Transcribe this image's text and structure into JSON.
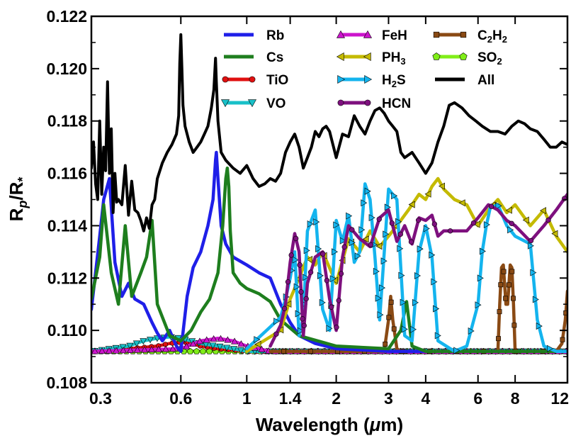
{
  "chart_data": {
    "type": "line",
    "title": "",
    "xlabel": "Wavelength (μm)",
    "xlabel_parts": [
      "Wavelength (",
      "μ",
      "m)"
    ],
    "ylabel": "Rp/R*",
    "ylabel_parts": [
      "R",
      "p",
      "/R",
      "*"
    ],
    "xscale": "log",
    "xlim": [
      0.3,
      12
    ],
    "ylim": [
      0.108,
      0.122
    ],
    "x_ticks": [
      0.3,
      0.6,
      1,
      1.4,
      2,
      3,
      4,
      6,
      8,
      12
    ],
    "x_tick_labels": [
      "0.3",
      "0.6",
      "1",
      "1.4",
      "2",
      "3",
      "4",
      "6",
      "8",
      "12"
    ],
    "y_ticks": [
      0.108,
      0.11,
      0.112,
      0.114,
      0.116,
      0.118,
      0.12,
      0.122
    ],
    "y_tick_labels": [
      "0.108",
      "0.110",
      "0.112",
      "0.114",
      "0.116",
      "0.118",
      "0.120",
      "0.122"
    ],
    "grid": false,
    "legend_position": "top-right",
    "baseline": 0.1092,
    "series": [
      {
        "name": "Rb",
        "label_parts": [
          "Rb"
        ],
        "color": "#1f1fe8",
        "marker": "none",
        "x": [
          0.3,
          0.32,
          0.33,
          0.345,
          0.36,
          0.38,
          0.4,
          0.42,
          0.45,
          0.48,
          0.5,
          0.52,
          0.55,
          0.58,
          0.6,
          0.63,
          0.66,
          0.7,
          0.74,
          0.77,
          0.785,
          0.79,
          0.8,
          0.82,
          0.85,
          0.9,
          1.0,
          1.1,
          1.2,
          1.3,
          1.4,
          1.5,
          1.7,
          2.0,
          3.0,
          12
        ],
        "y": [
          0.1108,
          0.1136,
          0.115,
          0.1158,
          0.1126,
          0.1113,
          0.1118,
          0.1112,
          0.111,
          0.1103,
          0.1099,
          0.1096,
          0.11,
          0.1094,
          0.1092,
          0.1113,
          0.1124,
          0.113,
          0.114,
          0.115,
          0.1165,
          0.1168,
          0.1158,
          0.114,
          0.1133,
          0.1128,
          0.1125,
          0.1122,
          0.112,
          0.111,
          0.1103,
          0.1098,
          0.1095,
          0.1093,
          0.1092,
          0.1092
        ]
      },
      {
        "name": "Cs",
        "label_parts": [
          "Cs"
        ],
        "color": "#1e7e1e",
        "marker": "none",
        "x": [
          0.3,
          0.32,
          0.33,
          0.35,
          0.37,
          0.39,
          0.41,
          0.44,
          0.46,
          0.48,
          0.5,
          0.55,
          0.6,
          0.65,
          0.7,
          0.75,
          0.8,
          0.83,
          0.85,
          0.86,
          0.87,
          0.88,
          0.9,
          0.95,
          1.0,
          1.1,
          1.2,
          1.3,
          1.5,
          2.0,
          3.0,
          3.3,
          3.45,
          3.6,
          4.0,
          12
        ],
        "y": [
          0.1112,
          0.1128,
          0.1148,
          0.1122,
          0.111,
          0.114,
          0.1113,
          0.1122,
          0.1128,
          0.1142,
          0.111,
          0.1098,
          0.1096,
          0.11,
          0.1107,
          0.1112,
          0.1122,
          0.114,
          0.1158,
          0.1162,
          0.1155,
          0.1138,
          0.1122,
          0.1118,
          0.1116,
          0.1114,
          0.1111,
          0.1104,
          0.1098,
          0.1094,
          0.1093,
          0.11,
          0.1111,
          0.1094,
          0.1092,
          0.1092
        ]
      },
      {
        "name": "TiO",
        "label_parts": [
          "TiO"
        ],
        "color": "#e01010",
        "marker": "circle",
        "x": [
          0.3,
          0.4,
          0.45,
          0.5,
          0.55,
          0.6,
          0.65,
          0.7,
          0.8,
          1.0,
          12
        ],
        "y": [
          0.1092,
          0.1093,
          0.10935,
          0.1094,
          0.1095,
          0.10955,
          0.1095,
          0.1094,
          0.1093,
          0.1092,
          0.1092
        ]
      },
      {
        "name": "VO",
        "label_parts": [
          "VO"
        ],
        "color": "#18c0c8",
        "marker": "triangle-down",
        "x": [
          0.3,
          0.4,
          0.45,
          0.5,
          0.55,
          0.6,
          0.65,
          0.7,
          0.8,
          0.9,
          1.0,
          12
        ],
        "y": [
          0.1092,
          0.1094,
          0.1096,
          0.1097,
          0.10975,
          0.1097,
          0.1096,
          0.1095,
          0.1094,
          0.1093,
          0.1092,
          0.1092
        ]
      },
      {
        "name": "FeH",
        "label_parts": [
          "FeH"
        ],
        "color": "#cc14cc",
        "marker": "triangle-up",
        "x": [
          0.3,
          0.6,
          0.7,
          0.8,
          0.9,
          1.0,
          1.1,
          1.2,
          12
        ],
        "y": [
          0.1092,
          0.1093,
          0.1096,
          0.1097,
          0.1096,
          0.1094,
          0.1093,
          0.1092,
          0.1092
        ]
      },
      {
        "name": "PH3",
        "label_parts": [
          "PH",
          "3"
        ],
        "color": "#c4ba00",
        "marker": "triangle-left",
        "x": [
          1.0,
          1.3,
          1.4,
          1.5,
          1.6,
          1.7,
          1.8,
          2.0,
          2.2,
          2.4,
          2.6,
          2.8,
          3.0,
          3.2,
          3.5,
          3.8,
          4.0,
          4.2,
          4.4,
          4.6,
          5.0,
          5.5,
          6.0,
          6.5,
          7.0,
          7.5,
          8.0,
          9.0,
          10.0,
          11.0,
          12.0
        ],
        "y": [
          0.1092,
          0.11,
          0.1112,
          0.112,
          0.1128,
          0.1125,
          0.113,
          0.1118,
          0.1135,
          0.113,
          0.1138,
          0.1132,
          0.1136,
          0.114,
          0.1146,
          0.1152,
          0.115,
          0.1155,
          0.1158,
          0.1154,
          0.115,
          0.1148,
          0.114,
          0.1146,
          0.115,
          0.1145,
          0.1148,
          0.114,
          0.1146,
          0.1136,
          0.113
        ]
      },
      {
        "name": "H2S",
        "label_parts": [
          "H",
          "2",
          "S"
        ],
        "color": "#14b4ee",
        "marker": "triangle-right",
        "x": [
          1.0,
          1.3,
          1.35,
          1.4,
          1.45,
          1.5,
          1.55,
          1.6,
          1.7,
          1.8,
          1.9,
          2.0,
          2.1,
          2.2,
          2.3,
          2.4,
          2.5,
          2.6,
          2.7,
          2.8,
          3.0,
          3.2,
          3.4,
          3.6,
          3.8,
          4.0,
          4.2,
          4.4,
          5.0,
          5.5,
          6.0,
          6.2,
          6.4,
          6.6,
          7.0,
          7.5,
          8.0,
          9.0,
          9.5,
          10.0,
          10.5,
          11.0,
          12
        ],
        "y": [
          0.1093,
          0.1105,
          0.1112,
          0.112,
          0.113,
          0.1098,
          0.1105,
          0.1138,
          0.1146,
          0.1108,
          0.11,
          0.1142,
          0.1134,
          0.1144,
          0.1126,
          0.113,
          0.1156,
          0.115,
          0.1128,
          0.1104,
          0.1154,
          0.115,
          0.1098,
          0.1096,
          0.113,
          0.114,
          0.1128,
          0.1096,
          0.1092,
          0.1094,
          0.111,
          0.113,
          0.114,
          0.1147,
          0.1148,
          0.114,
          0.1136,
          0.1133,
          0.1104,
          0.1094,
          0.1093,
          0.1092,
          0.1092
        ]
      },
      {
        "name": "HCN",
        "label_parts": [
          "HCN"
        ],
        "color": "#7e107e",
        "marker": "circle",
        "x": [
          1.2,
          1.3,
          1.35,
          1.4,
          1.45,
          1.5,
          1.55,
          1.6,
          1.7,
          1.8,
          1.9,
          2.0,
          2.1,
          2.2,
          2.4,
          2.6,
          2.8,
          3.0,
          3.2,
          3.4,
          3.6,
          3.8,
          4.0,
          4.2,
          4.4,
          4.6,
          5.0,
          5.5,
          6.0,
          6.5,
          7.0,
          7.5,
          8.0,
          9.0,
          10.0,
          11.0,
          12
        ],
        "y": [
          0.1094,
          0.1102,
          0.111,
          0.1126,
          0.1137,
          0.113,
          0.1098,
          0.1118,
          0.1128,
          0.113,
          0.1112,
          0.11,
          0.1128,
          0.114,
          0.1135,
          0.1132,
          0.1143,
          0.1146,
          0.1134,
          0.114,
          0.1133,
          0.1143,
          0.1142,
          0.1144,
          0.1136,
          0.1138,
          0.1138,
          0.1138,
          0.1143,
          0.1148,
          0.1146,
          0.1142,
          0.114,
          0.1134,
          0.114,
          0.1146,
          0.1152
        ]
      },
      {
        "name": "C2H2",
        "label_parts": [
          "C",
          "2",
          "H",
          "2"
        ],
        "color": "#8a4a14",
        "marker": "square",
        "x": [
          1.2,
          2.9,
          3.0,
          3.05,
          3.1,
          3.2,
          3.3,
          7.0,
          7.1,
          7.2,
          7.3,
          7.45,
          7.55,
          7.7,
          7.8,
          7.9,
          8.0,
          11.0,
          11.5,
          11.8,
          12
        ],
        "y": [
          0.1092,
          0.1092,
          0.1104,
          0.1113,
          0.1104,
          0.1093,
          0.1092,
          0.1092,
          0.111,
          0.1124,
          0.1125,
          0.111,
          0.111,
          0.1125,
          0.1124,
          0.111,
          0.1092,
          0.1092,
          0.1095,
          0.1104,
          0.1115
        ]
      },
      {
        "name": "SO2",
        "label_parts": [
          "SO",
          "2"
        ],
        "color": "#80ee18",
        "marker": "pentagon",
        "x": [
          0.3,
          12
        ],
        "y": [
          0.1092,
          0.1092
        ]
      },
      {
        "name": "All",
        "label_parts": [
          "All"
        ],
        "color": "#000000",
        "marker": "none",
        "x": [
          0.3,
          0.305,
          0.31,
          0.315,
          0.32,
          0.325,
          0.33,
          0.335,
          0.34,
          0.345,
          0.35,
          0.355,
          0.36,
          0.365,
          0.37,
          0.38,
          0.39,
          0.4,
          0.41,
          0.42,
          0.43,
          0.44,
          0.45,
          0.46,
          0.47,
          0.48,
          0.49,
          0.5,
          0.52,
          0.54,
          0.56,
          0.58,
          0.59,
          0.595,
          0.6,
          0.605,
          0.61,
          0.62,
          0.64,
          0.66,
          0.68,
          0.7,
          0.72,
          0.74,
          0.76,
          0.775,
          0.785,
          0.79,
          0.8,
          0.82,
          0.85,
          0.9,
          0.95,
          1.0,
          1.05,
          1.1,
          1.15,
          1.2,
          1.25,
          1.3,
          1.35,
          1.4,
          1.45,
          1.5,
          1.55,
          1.6,
          1.65,
          1.7,
          1.75,
          1.8,
          1.85,
          1.9,
          2.0,
          2.1,
          2.2,
          2.3,
          2.4,
          2.5,
          2.6,
          2.7,
          2.8,
          2.9,
          3.0,
          3.1,
          3.2,
          3.3,
          3.4,
          3.6,
          3.8,
          4.0,
          4.2,
          4.4,
          4.6,
          4.8,
          5.0,
          5.3,
          5.6,
          5.9,
          6.2,
          6.6,
          7.0,
          7.4,
          7.8,
          8.2,
          8.6,
          9.0,
          9.5,
          10.0,
          10.5,
          11.0,
          11.5,
          12.0
        ],
        "y": [
          0.1162,
          0.1172,
          0.1156,
          0.115,
          0.118,
          0.1152,
          0.117,
          0.1161,
          0.1195,
          0.116,
          0.1177,
          0.1145,
          0.116,
          0.1149,
          0.115,
          0.1148,
          0.1163,
          0.1144,
          0.1157,
          0.1146,
          0.1145,
          0.1142,
          0.1138,
          0.1143,
          0.1139,
          0.1148,
          0.115,
          0.1158,
          0.1164,
          0.1168,
          0.1171,
          0.1175,
          0.1182,
          0.1202,
          0.1213,
          0.12,
          0.1186,
          0.1178,
          0.1172,
          0.1168,
          0.117,
          0.1172,
          0.1175,
          0.1178,
          0.1185,
          0.1192,
          0.1204,
          0.1195,
          0.118,
          0.1168,
          0.1165,
          0.1162,
          0.116,
          0.1163,
          0.1158,
          0.1155,
          0.1156,
          0.1158,
          0.1157,
          0.116,
          0.1168,
          0.1172,
          0.1175,
          0.117,
          0.1162,
          0.1166,
          0.117,
          0.1176,
          0.1174,
          0.1177,
          0.1178,
          0.1176,
          0.1166,
          0.1175,
          0.1174,
          0.1182,
          0.1178,
          0.1175,
          0.118,
          0.1184,
          0.1185,
          0.1183,
          0.118,
          0.1178,
          0.1176,
          0.1168,
          0.1166,
          0.1168,
          0.1164,
          0.116,
          0.1164,
          0.1172,
          0.1178,
          0.1186,
          0.1187,
          0.1185,
          0.1182,
          0.118,
          0.1178,
          0.1176,
          0.1176,
          0.1175,
          0.1178,
          0.118,
          0.1179,
          0.1177,
          0.1176,
          0.1173,
          0.117,
          0.117,
          0.1172,
          0.1171
        ]
      }
    ],
    "legend_columns": [
      [
        "Rb",
        "Cs",
        "TiO",
        "VO"
      ],
      [
        "FeH",
        "PH3",
        "H2S",
        "HCN"
      ],
      [
        "C2H2",
        "SO2",
        "All"
      ]
    ]
  }
}
